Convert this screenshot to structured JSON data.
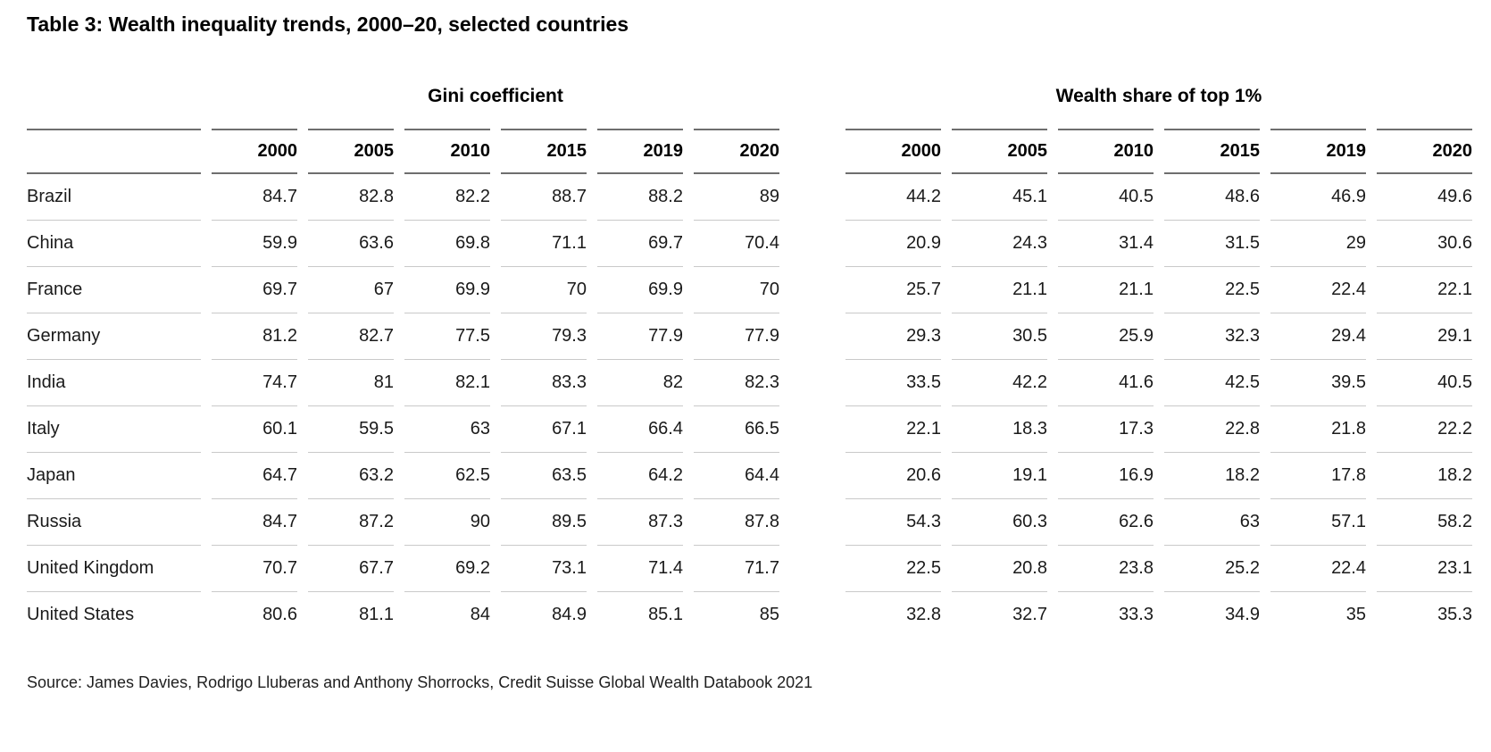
{
  "title": "Table 3: Wealth inequality trends, 2000–20, selected countries",
  "source": "Source: James Davies, Rodrigo Lluberas and Anthony Shorrocks, Credit Suisse Global Wealth Databook 2021",
  "colors": {
    "background": "#ffffff",
    "text": "#1a1a1a",
    "heading": "#000000",
    "header_rule": "#6e6e6e",
    "row_rule": "#c9c9c9"
  },
  "chart_data": {
    "type": "table",
    "years": [
      "2000",
      "2005",
      "2010",
      "2015",
      "2019",
      "2020"
    ],
    "column_groups": [
      {
        "label": "Gini coefficient"
      },
      {
        "label": "Wealth share of top 1%"
      }
    ],
    "rows": [
      {
        "country": "Brazil",
        "gini": [
          84.7,
          82.8,
          82.2,
          88.7,
          88.2,
          89
        ],
        "top1": [
          44.2,
          45.1,
          40.5,
          48.6,
          46.9,
          49.6
        ]
      },
      {
        "country": "China",
        "gini": [
          59.9,
          63.6,
          69.8,
          71.1,
          69.7,
          70.4
        ],
        "top1": [
          20.9,
          24.3,
          31.4,
          31.5,
          29,
          30.6
        ]
      },
      {
        "country": "France",
        "gini": [
          69.7,
          67,
          69.9,
          70,
          69.9,
          70
        ],
        "top1": [
          25.7,
          21.1,
          21.1,
          22.5,
          22.4,
          22.1
        ]
      },
      {
        "country": "Germany",
        "gini": [
          81.2,
          82.7,
          77.5,
          79.3,
          77.9,
          77.9
        ],
        "top1": [
          29.3,
          30.5,
          25.9,
          32.3,
          29.4,
          29.1
        ]
      },
      {
        "country": "India",
        "gini": [
          74.7,
          81,
          82.1,
          83.3,
          82,
          82.3
        ],
        "top1": [
          33.5,
          42.2,
          41.6,
          42.5,
          39.5,
          40.5
        ]
      },
      {
        "country": "Italy",
        "gini": [
          60.1,
          59.5,
          63,
          67.1,
          66.4,
          66.5
        ],
        "top1": [
          22.1,
          18.3,
          17.3,
          22.8,
          21.8,
          22.2
        ]
      },
      {
        "country": "Japan",
        "gini": [
          64.7,
          63.2,
          62.5,
          63.5,
          64.2,
          64.4
        ],
        "top1": [
          20.6,
          19.1,
          16.9,
          18.2,
          17.8,
          18.2
        ]
      },
      {
        "country": "Russia",
        "gini": [
          84.7,
          87.2,
          90,
          89.5,
          87.3,
          87.8
        ],
        "top1": [
          54.3,
          60.3,
          62.6,
          63,
          57.1,
          58.2
        ]
      },
      {
        "country": "United Kingdom",
        "gini": [
          70.7,
          67.7,
          69.2,
          73.1,
          71.4,
          71.7
        ],
        "top1": [
          22.5,
          20.8,
          23.8,
          25.2,
          22.4,
          23.1
        ]
      },
      {
        "country": "United States",
        "gini": [
          80.6,
          81.1,
          84,
          84.9,
          85.1,
          85
        ],
        "top1": [
          32.8,
          32.7,
          33.3,
          34.9,
          35,
          35.3
        ]
      }
    ]
  }
}
